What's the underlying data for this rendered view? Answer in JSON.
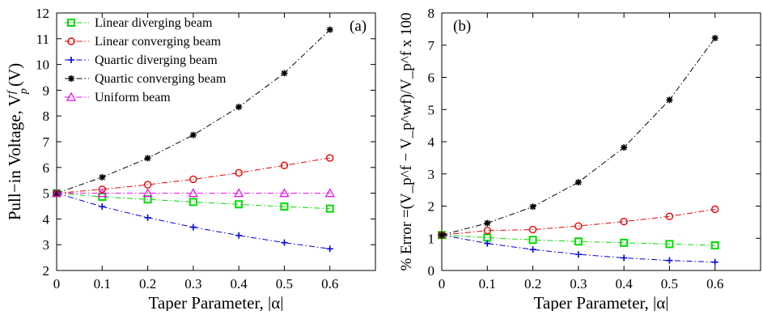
{
  "chart_data": [
    {
      "type": "line",
      "panel_label": "(a)",
      "xlabel": "Taper Parameter, |α|",
      "ylabel": "Pull−in Voltage, V",
      "ylabel_sup": "f",
      "ylabel_sub": "p",
      "ylabel_unit": " (V)",
      "xlim": [
        0,
        0.7
      ],
      "ylim": [
        2,
        12
      ],
      "xticks": [
        0,
        0.1,
        0.2,
        0.3,
        0.4,
        0.5,
        0.6
      ],
      "yticks": [
        2,
        3,
        4,
        5,
        6,
        7,
        8,
        9,
        10,
        11,
        12
      ],
      "legend_position": "top-left",
      "x": [
        0,
        0.1,
        0.2,
        0.3,
        0.4,
        0.5,
        0.6
      ],
      "series": [
        {
          "name": "Linear diverging beam",
          "color": "#00dd00",
          "marker": "square",
          "values": [
            5.0,
            4.86,
            4.76,
            4.66,
            4.57,
            4.48,
            4.4
          ]
        },
        {
          "name": "Linear converging beam",
          "color": "#ee0000",
          "marker": "circle",
          "values": [
            5.0,
            5.15,
            5.33,
            5.54,
            5.79,
            6.08,
            6.37
          ]
        },
        {
          "name": "Quartic diverging beam",
          "color": "#0000dd",
          "marker": "plus",
          "values": [
            5.0,
            4.48,
            4.05,
            3.68,
            3.36,
            3.08,
            2.84
          ]
        },
        {
          "name": "Quartic converging beam",
          "color": "#000000",
          "marker": "star",
          "values": [
            5.0,
            5.62,
            6.36,
            7.26,
            8.35,
            9.66,
            11.35
          ]
        },
        {
          "name": "Uniform beam",
          "color": "#ee00ee",
          "marker": "triangle",
          "values": [
            5.0,
            5.0,
            5.0,
            5.0,
            5.0,
            5.0,
            5.0
          ]
        }
      ]
    },
    {
      "type": "line",
      "panel_label": "(b)",
      "xlabel": "Taper Parameter, |α|",
      "ylabel": "% Error =(V_p^f − V_p^wf)/V_p^f x 100",
      "xlim": [
        0,
        0.7
      ],
      "ylim": [
        0,
        8
      ],
      "xticks": [
        0,
        0.1,
        0.2,
        0.3,
        0.4,
        0.5,
        0.6
      ],
      "yticks": [
        0,
        1,
        2,
        3,
        4,
        5,
        6,
        7,
        8
      ],
      "x": [
        0,
        0.1,
        0.2,
        0.3,
        0.4,
        0.5,
        0.6
      ],
      "series": [
        {
          "color": "#00dd00",
          "marker": "square",
          "values": [
            1.1,
            1.02,
            0.95,
            0.9,
            0.86,
            0.82,
            0.78
          ]
        },
        {
          "color": "#ee0000",
          "marker": "circle",
          "values": [
            1.1,
            1.24,
            1.27,
            1.38,
            1.52,
            1.68,
            1.9
          ]
        },
        {
          "color": "#0000dd",
          "marker": "plus",
          "values": [
            1.1,
            0.84,
            0.65,
            0.5,
            0.39,
            0.31,
            0.26
          ]
        },
        {
          "color": "#000000",
          "marker": "star",
          "values": [
            1.1,
            1.47,
            1.98,
            2.74,
            3.82,
            5.3,
            7.22
          ]
        }
      ]
    }
  ]
}
